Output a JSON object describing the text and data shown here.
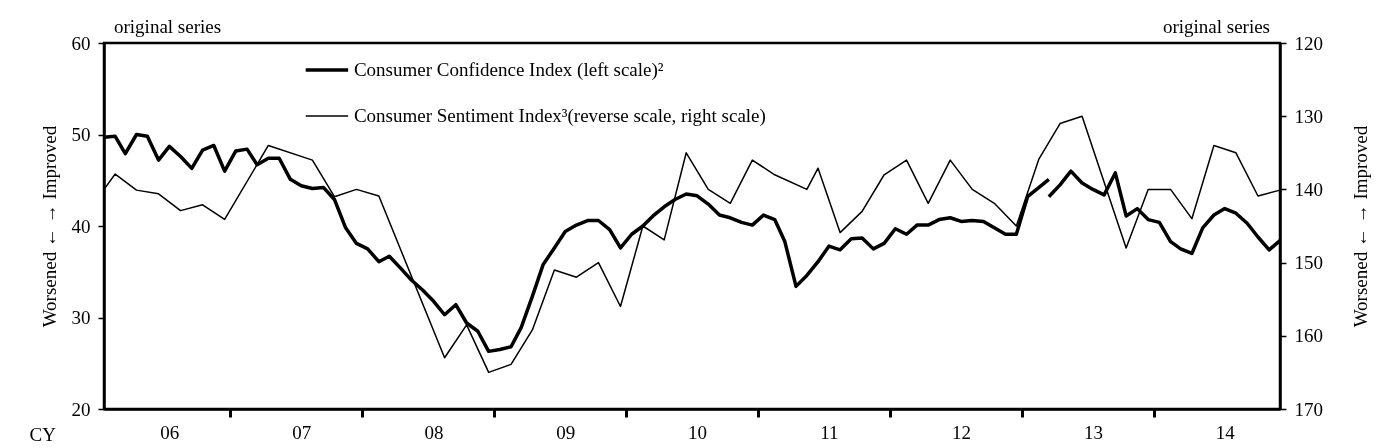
{
  "chart_data": {
    "type": "line",
    "xlabel": "CY",
    "ylabel": "Worsened ← → Improved",
    "y2label": "Worsened ← → Improved",
    "annotations": [
      "original series",
      "original series"
    ],
    "xlim": [
      "2006-01",
      "2014-12"
    ],
    "xticks": [
      {
        "value": "2006-07",
        "label": "06"
      },
      {
        "value": "2007-07",
        "label": "07"
      },
      {
        "value": "2008-07",
        "label": "08"
      },
      {
        "value": "2009-07",
        "label": "09"
      },
      {
        "value": "2010-07",
        "label": "10"
      },
      {
        "value": "2011-07",
        "label": "11"
      },
      {
        "value": "2012-07",
        "label": "12"
      },
      {
        "value": "2013-07",
        "label": "13"
      },
      {
        "value": "2014-07",
        "label": "14"
      },
      {
        "value": "2006-12-16",
        "label": null
      },
      {
        "value": "2007-12-16",
        "label": null
      },
      {
        "value": "2008-12-16",
        "label": null
      },
      {
        "value": "2009-12-16",
        "label": null
      },
      {
        "value": "2010-12-16",
        "label": null
      },
      {
        "value": "2011-12-16",
        "label": null
      },
      {
        "value": "2012-12-16",
        "label": null
      },
      {
        "value": "2013-12-16",
        "label": null
      }
    ],
    "ylim": [
      20,
      60
    ],
    "yticks": [
      20,
      30,
      40,
      50,
      60
    ],
    "y2lim": [
      170,
      120
    ],
    "y2ticks": [
      120,
      130,
      140,
      150,
      160,
      170
    ],
    "grid": false,
    "legend": "top",
    "marker": "none",
    "series": [
      {
        "name": "Consumer Confidence Index (left scale)²",
        "color": "#000000",
        "axis": "y",
        "x": [
          "2006-01",
          "2006-02",
          "2006-03",
          "2006-04",
          "2006-05",
          "2006-06",
          "2006-07",
          "2006-08",
          "2006-09",
          "2006-10",
          "2006-11",
          "2006-12",
          "2007-01",
          "2007-02",
          "2007-03",
          "2007-04",
          "2007-05",
          "2007-06",
          "2007-07",
          "2007-08",
          "2007-09",
          "2007-10",
          "2007-11",
          "2007-12",
          "2008-01",
          "2008-02",
          "2008-03",
          "2008-04",
          "2008-05",
          "2008-06",
          "2008-07",
          "2008-08",
          "2008-09",
          "2008-10",
          "2008-11",
          "2008-12",
          "2009-01",
          "2009-02",
          "2009-03",
          "2009-04",
          "2009-05",
          "2009-06",
          "2009-07",
          "2009-08",
          "2009-09",
          "2009-10",
          "2009-11",
          "2009-12",
          "2010-01",
          "2010-02",
          "2010-03",
          "2010-04",
          "2010-05",
          "2010-06",
          "2010-07",
          "2010-08",
          "2010-09",
          "2010-10",
          "2010-11",
          "2010-12",
          "2011-01",
          "2011-02",
          "2011-03",
          "2011-04",
          "2011-05",
          "2011-06",
          "2011-07",
          "2011-08",
          "2011-09",
          "2011-10",
          "2011-11",
          "2011-12",
          "2012-01",
          "2012-02",
          "2012-03",
          "2012-04",
          "2012-05",
          "2012-06",
          "2012-07",
          "2012-08",
          "2012-09",
          "2012-10",
          "2012-11",
          "2012-12",
          "2013-01",
          "2013-02",
          "2013-03"
        ],
        "values": [
          49.7,
          49.8,
          47.9,
          50.0,
          49.8,
          47.2,
          48.7,
          47.6,
          46.3,
          48.3,
          48.8,
          46.0,
          48.2,
          48.4,
          46.7,
          47.4,
          47.4,
          45.1,
          44.4,
          44.1,
          44.2,
          42.9,
          39.8,
          38.1,
          37.5,
          36.1,
          36.7,
          35.4,
          34.1,
          33.0,
          31.8,
          30.3,
          31.4,
          29.4,
          28.5,
          26.3,
          26.5,
          26.8,
          28.9,
          32.3,
          35.8,
          37.6,
          39.4,
          40.1,
          40.6,
          40.6,
          39.6,
          37.6,
          39.1,
          40.0,
          41.1,
          42.1,
          42.9,
          43.5,
          43.3,
          42.4,
          41.2,
          40.9,
          40.4,
          40.1,
          41.2,
          40.7,
          38.3,
          33.4,
          34.6,
          36.1,
          37.8,
          37.4,
          38.6,
          38.7,
          37.5,
          38.1,
          39.7,
          39.1,
          40.1,
          40.1,
          40.7,
          40.9,
          40.5,
          40.6,
          40.5,
          39.8,
          39.1,
          39.1,
          43.2,
          44.2,
          45.1
        ]
      },
      {
        "color": "#000000",
        "axis": "y",
        "x": [
          "2013-03",
          "2013-04",
          "2013-05",
          "2013-06",
          "2013-07",
          "2013-08",
          "2013-09",
          "2013-10",
          "2013-11",
          "2013-12",
          "2014-01",
          "2014-02",
          "2014-03",
          "2014-04",
          "2014-05",
          "2014-06",
          "2014-07",
          "2014-08",
          "2014-09",
          "2014-10",
          "2014-11",
          "2014-12"
        ],
        "values": [
          43.2,
          44.5,
          46.0,
          44.7,
          44.0,
          43.4,
          45.8,
          41.1,
          41.9,
          40.7,
          40.4,
          38.3,
          37.5,
          37.0,
          39.8,
          41.2,
          41.9,
          41.4,
          40.3,
          38.8,
          37.4,
          38.4
        ]
      },
      {
        "name": "Consumer Sentiment Index³(reverse scale, right scale)",
        "color": "#000000",
        "axis": "y2",
        "x": [
          "2006-01",
          "2006-02",
          "2006-04",
          "2006-06",
          "2006-08",
          "2006-10",
          "2006-12",
          "2007-04",
          "2007-08",
          "2007-10",
          "2007-12",
          "2008-02",
          "2008-08",
          "2008-10",
          "2008-12",
          "2009-02",
          "2009-04",
          "2009-06",
          "2009-08",
          "2009-10",
          "2009-12",
          "2010-02",
          "2010-04",
          "2010-06",
          "2010-08",
          "2010-10",
          "2010-12",
          "2011-02",
          "2011-05",
          "2011-06",
          "2011-08",
          "2011-10",
          "2011-12",
          "2012-02",
          "2012-04",
          "2012-06",
          "2012-08",
          "2012-10",
          "2012-12",
          "2013-02",
          "2013-04",
          "2013-06",
          "2013-10",
          "2013-12",
          "2014-02",
          "2014-04",
          "2014-06",
          "2014-08",
          "2014-10",
          "2014-12"
        ],
        "values": [
          140.0,
          137.9,
          140.1,
          140.6,
          142.9,
          142.1,
          144.1,
          134.0,
          136.0,
          141.0,
          140.0,
          140.9,
          163.0,
          158.5,
          165.0,
          163.9,
          159.2,
          151.0,
          152.0,
          150.0,
          156.0,
          145.0,
          146.9,
          135.0,
          140.0,
          141.9,
          136.0,
          138.0,
          140.0,
          137.1,
          145.9,
          143.0,
          138.0,
          136.0,
          141.9,
          136.0,
          140.0,
          141.9,
          145.0,
          135.9,
          131.0,
          130.0,
          148.0,
          140.0,
          140.0,
          144.0,
          134.0,
          135.0,
          140.9,
          140.1
        ]
      }
    ]
  }
}
